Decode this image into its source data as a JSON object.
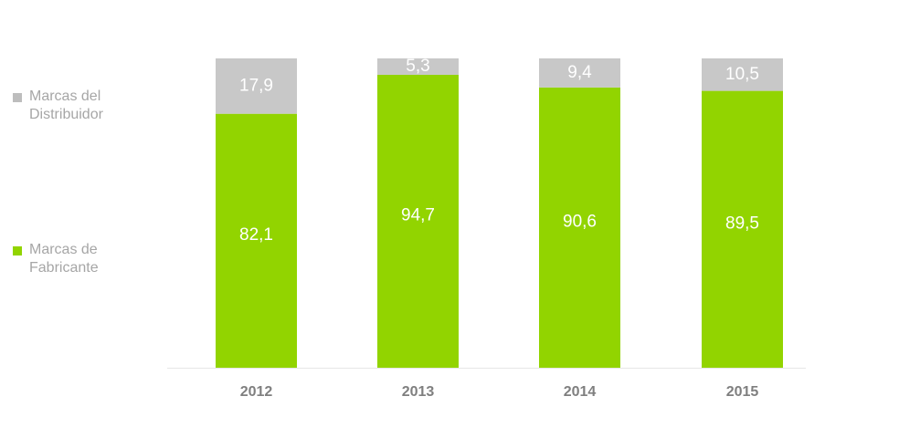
{
  "chart_data": {
    "type": "bar",
    "stacked": true,
    "title": "",
    "xlabel": "",
    "ylabel": "",
    "ylim": [
      0,
      100
    ],
    "grid": false,
    "legend_position": "left",
    "categories": [
      "2012",
      "2013",
      "2014",
      "2015"
    ],
    "series": [
      {
        "name": "Marcas de Fabricante",
        "color": "#92d400",
        "values": [
          82.1,
          94.7,
          90.6,
          89.5
        ],
        "labels": [
          "82,1",
          "94,7",
          "90,6",
          "89,5"
        ]
      },
      {
        "name": "Marcas del Distribuidor",
        "color": "#c8c8c8",
        "values": [
          17.9,
          5.3,
          9.4,
          10.5
        ],
        "labels": [
          "17,9",
          "5,3",
          "9,4",
          "10,5"
        ]
      }
    ]
  },
  "legend": [
    {
      "label": "Marcas del Distribuidor",
      "color": "#bdbdbd"
    },
    {
      "label": "Marcas de Fabricante",
      "color": "#92d400"
    }
  ]
}
